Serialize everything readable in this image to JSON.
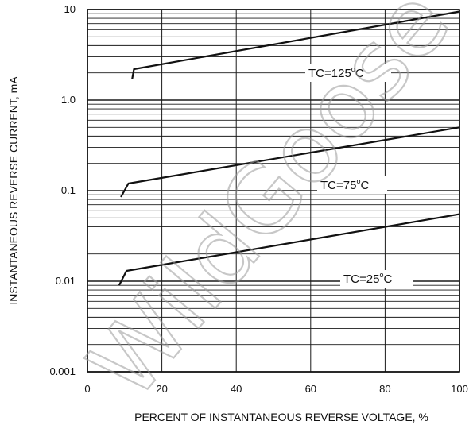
{
  "watermark": "WildGoose",
  "chart_data": {
    "type": "line",
    "title": "",
    "xlabel": "PERCENT OF INSTANTANEOUS REVERSE VOLTAGE, %",
    "ylabel": "INSTANTANEOUS REVERSE CURRENT, mA",
    "xlim": [
      0,
      100
    ],
    "ylim": [
      0.001,
      10
    ],
    "yscale": "log",
    "grid": true,
    "x_ticks": [
      0,
      20,
      40,
      60,
      80,
      100
    ],
    "x_tick_labels": [
      "0",
      "20",
      "40",
      "60",
      "80",
      "100"
    ],
    "y_ticks": [
      0.001,
      0.01,
      0.1,
      1.0,
      10
    ],
    "y_tick_labels": [
      "0.001",
      "0.01",
      "0.1",
      "1.0",
      "10"
    ],
    "series": [
      {
        "name": "TC=125°C",
        "label_main": "TC=125",
        "label_unit": "C",
        "label_sup": "o",
        "x": [
          12,
          12.5,
          100
        ],
        "y": [
          1.7,
          2.2,
          9.5
        ]
      },
      {
        "name": "TC=75°C",
        "label_main": "TC=75",
        "label_unit": "C",
        "label_sup": "o",
        "x": [
          9,
          11,
          100
        ],
        "y": [
          0.085,
          0.12,
          0.5
        ]
      },
      {
        "name": "TC=25°C",
        "label_main": "TC=25",
        "label_unit": "C",
        "label_sup": "o",
        "x": [
          8.5,
          10.5,
          100
        ],
        "y": [
          0.009,
          0.013,
          0.055
        ]
      }
    ]
  }
}
